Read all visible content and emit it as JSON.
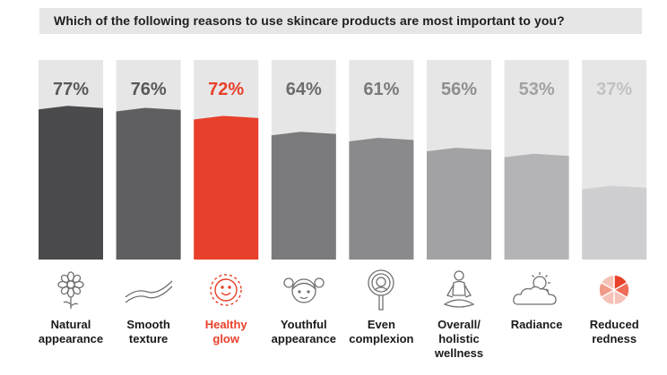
{
  "question": "Which of the following reasons to use skincare products are most important to you?",
  "colors": {
    "highlight": "#e8402a",
    "background_bar": "#e6e6e7",
    "bars": [
      "#4b4b4d",
      "#5f5f61",
      "#e8402a",
      "#7a7a7c",
      "#8a8a8c",
      "#a2a2a4",
      "#b4b4b6",
      "#cfcfd1"
    ],
    "labels": [
      "#59595b",
      "#59595b",
      "#e8402a",
      "#6c6c6e",
      "#7a7a7c",
      "#8e8e90",
      "#a2a2a4",
      "#c2c2c4"
    ]
  },
  "icons": [
    "flower-icon",
    "wavy-lines-icon",
    "smiley-face-icon",
    "girl-face-icon",
    "hand-mirror-icon",
    "meditation-icon",
    "sun-behind-cloud-icon",
    "pie-circle-icon"
  ],
  "chart_data": {
    "type": "bar",
    "categories": [
      "Natural\nappearance",
      "Smooth\ntexture",
      "Healthy\nglow",
      "Youthful\nappearance",
      "Even\ncomplexion",
      "Overall/\nholistic\nwellness",
      "Radiance",
      "Reduced\nredness"
    ],
    "values": [
      77,
      76,
      72,
      64,
      61,
      56,
      53,
      37
    ],
    "value_labels": [
      "77%",
      "76%",
      "72%",
      "64%",
      "61%",
      "56%",
      "53%",
      "37%"
    ],
    "highlight_index": 2,
    "ylim": [
      0,
      100
    ],
    "title": "Which of the following reasons to use skincare products are most important to you?",
    "xlabel": "",
    "ylabel": ""
  }
}
